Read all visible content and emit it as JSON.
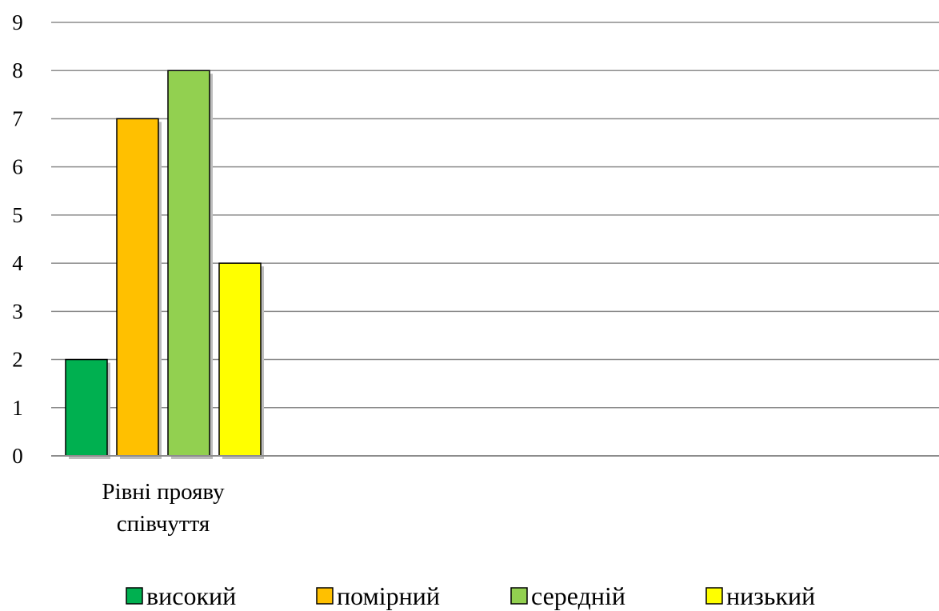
{
  "chart_data": {
    "type": "bar",
    "categories": [
      "Рівні прояву співчуття"
    ],
    "category_lines": [
      [
        "Рівні прояву",
        "співчуття"
      ]
    ],
    "series": [
      {
        "name": "високий",
        "values": [
          2
        ],
        "color": "#00B050"
      },
      {
        "name": "помірний",
        "values": [
          7
        ],
        "color": "#FFC000"
      },
      {
        "name": "середній",
        "values": [
          8
        ],
        "color": "#92D050"
      },
      {
        "name": "низький",
        "values": [
          4
        ],
        "color": "#FFFF00"
      }
    ],
    "title": "",
    "xlabel": "",
    "ylabel": "",
    "ylim": [
      0,
      9
    ],
    "yticks": [
      "0",
      "1",
      "2",
      "3",
      "4",
      "5",
      "6",
      "7",
      "8",
      "9"
    ],
    "grid": true,
    "legend_position": "bottom"
  }
}
